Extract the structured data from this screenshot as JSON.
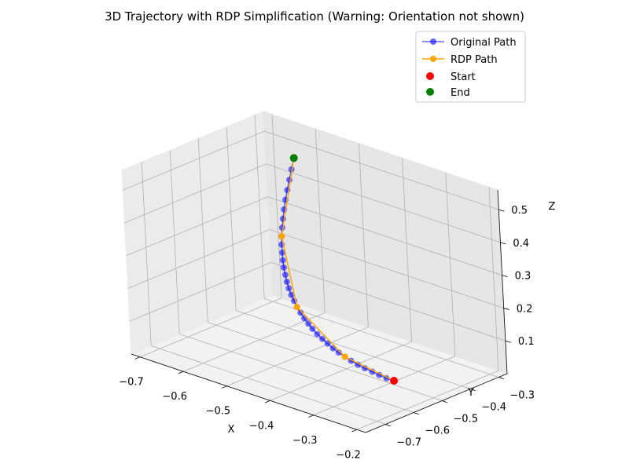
{
  "chart_data": {
    "type": "line3d",
    "title": "3D Trajectory with RDP Simplification (Warning: Orientation not shown)",
    "xlabel": "X",
    "ylabel": "Y",
    "zlabel": "Z",
    "x_ticks": [
      "−0.7",
      "−0.6",
      "−0.5",
      "−0.4",
      "−0.3",
      "−0.2"
    ],
    "y_ticks": [
      "−0.7",
      "−0.6",
      "−0.5",
      "−0.4",
      "−0.3"
    ],
    "z_ticks": [
      "0.1",
      "0.2",
      "0.3",
      "0.4",
      "0.5"
    ],
    "x_tick_values": [
      -0.7,
      -0.6,
      -0.5,
      -0.4,
      -0.3,
      -0.2
    ],
    "y_tick_values": [
      -0.7,
      -0.6,
      -0.5,
      -0.4,
      -0.3
    ],
    "z_tick_values": [
      0.1,
      0.2,
      0.3,
      0.4,
      0.5
    ],
    "xlim": [
      -0.72,
      -0.18
    ],
    "ylim": [
      -0.77,
      -0.27
    ],
    "zlim": [
      0.0,
      0.56
    ],
    "grid": true,
    "legend_position": "top-right",
    "series": [
      {
        "name": "Original Path",
        "color": "#0000ff",
        "marker": "circle",
        "x": [
          -0.6,
          -0.594,
          -0.588,
          -0.582,
          -0.576,
          -0.569,
          -0.561,
          -0.553,
          -0.545,
          -0.536,
          -0.526,
          -0.516,
          -0.506,
          -0.495,
          -0.484,
          -0.473,
          -0.461,
          -0.449,
          -0.437,
          -0.424,
          -0.411,
          -0.398,
          -0.385,
          -0.371,
          -0.357,
          -0.343,
          -0.329,
          -0.315,
          -0.3,
          -0.286,
          -0.271,
          -0.257,
          -0.242,
          -0.228,
          -0.214,
          -0.2
        ],
        "y": [
          -0.35,
          -0.369,
          -0.387,
          -0.405,
          -0.422,
          -0.439,
          -0.456,
          -0.472,
          -0.487,
          -0.502,
          -0.516,
          -0.53,
          -0.543,
          -0.555,
          -0.567,
          -0.578,
          -0.588,
          -0.597,
          -0.606,
          -0.614,
          -0.621,
          -0.627,
          -0.633,
          -0.638,
          -0.642,
          -0.645,
          -0.648,
          -0.65,
          -0.651,
          -0.651,
          -0.65,
          -0.648,
          -0.645,
          -0.642,
          -0.638,
          -0.633
        ],
        "z": [
          0.5,
          0.475,
          0.452,
          0.43,
          0.409,
          0.389,
          0.37,
          0.352,
          0.335,
          0.319,
          0.304,
          0.29,
          0.277,
          0.264,
          0.252,
          0.241,
          0.23,
          0.22,
          0.21,
          0.201,
          0.192,
          0.184,
          0.176,
          0.168,
          0.161,
          0.154,
          0.147,
          0.141,
          0.135,
          0.129,
          0.123,
          0.118,
          0.113,
          0.108,
          0.103,
          0.1
        ]
      },
      {
        "name": "RDP Path",
        "color": "#ffa500",
        "marker": "circle",
        "x": [
          -0.6,
          -0.545,
          -0.437,
          -0.3,
          -0.2
        ],
        "y": [
          -0.35,
          -0.487,
          -0.606,
          -0.651,
          -0.633
        ],
        "z": [
          0.5,
          0.335,
          0.21,
          0.135,
          0.1
        ]
      }
    ],
    "points": [
      {
        "name": "Start",
        "color": "#ff0000",
        "x": -0.2,
        "y": -0.633,
        "z": 0.1
      },
      {
        "name": "End",
        "color": "#008000",
        "x": -0.6,
        "y": -0.35,
        "z": 0.5
      }
    ]
  }
}
